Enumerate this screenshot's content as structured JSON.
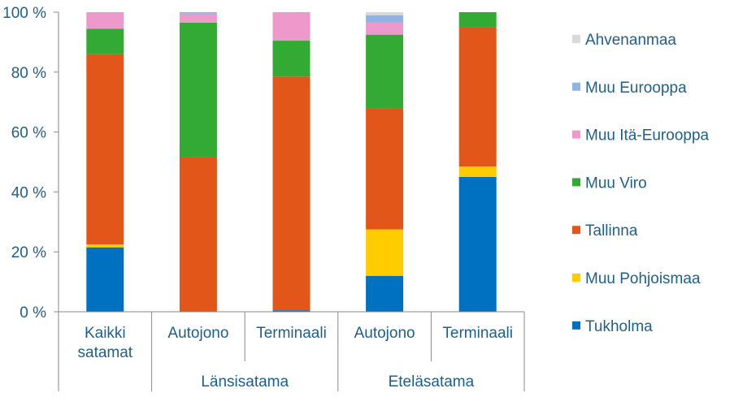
{
  "chart_data": {
    "type": "bar",
    "stacked": true,
    "percent": true,
    "categories": [
      "Kaikki satamat",
      "Autojono",
      "Terminaali",
      "Autojono",
      "Terminaali"
    ],
    "category_lines": [
      [
        "Kaikki",
        "satamat"
      ],
      [
        "Autojono"
      ],
      [
        "Terminaali"
      ],
      [
        "Autojono"
      ],
      [
        "Terminaali"
      ]
    ],
    "groups": [
      {
        "label": "",
        "span": [
          0,
          0
        ]
      },
      {
        "label": "Länsisatama",
        "span": [
          1,
          2
        ]
      },
      {
        "label": "Eteläsatama",
        "span": [
          3,
          4
        ]
      }
    ],
    "y_ticks": [
      "0 %",
      "20 %",
      "40 %",
      "60 %",
      "80 %",
      "100 %"
    ],
    "ylim": [
      0,
      100
    ],
    "legend_position": "right",
    "series": [
      {
        "name": "Tukholma",
        "color": "#0070c0",
        "values": [
          21.5,
          0,
          0.5,
          12,
          45
        ]
      },
      {
        "name": "Muu Pohjoismaa",
        "color": "#ffcc00",
        "values": [
          1,
          0,
          0,
          15.5,
          3.5
        ]
      },
      {
        "name": "Tallinna",
        "color": "#e2561a",
        "values": [
          63.5,
          51.5,
          78,
          40.5,
          46.5
        ]
      },
      {
        "name": "Muu Viro",
        "color": "#33aa33",
        "values": [
          8.5,
          45,
          12,
          24.5,
          5
        ]
      },
      {
        "name": "Muu Itä-Eurooppa",
        "color": "#ee99cc",
        "values": [
          5.5,
          3,
          9.5,
          4,
          0
        ]
      },
      {
        "name": "Muu Eurooppa",
        "color": "#8db4e2",
        "values": [
          0,
          0.5,
          0,
          2.5,
          0
        ]
      },
      {
        "name": "Ahvenanmaa",
        "color": "#d9d9d9",
        "values": [
          0,
          0,
          0,
          1,
          0
        ]
      }
    ]
  }
}
